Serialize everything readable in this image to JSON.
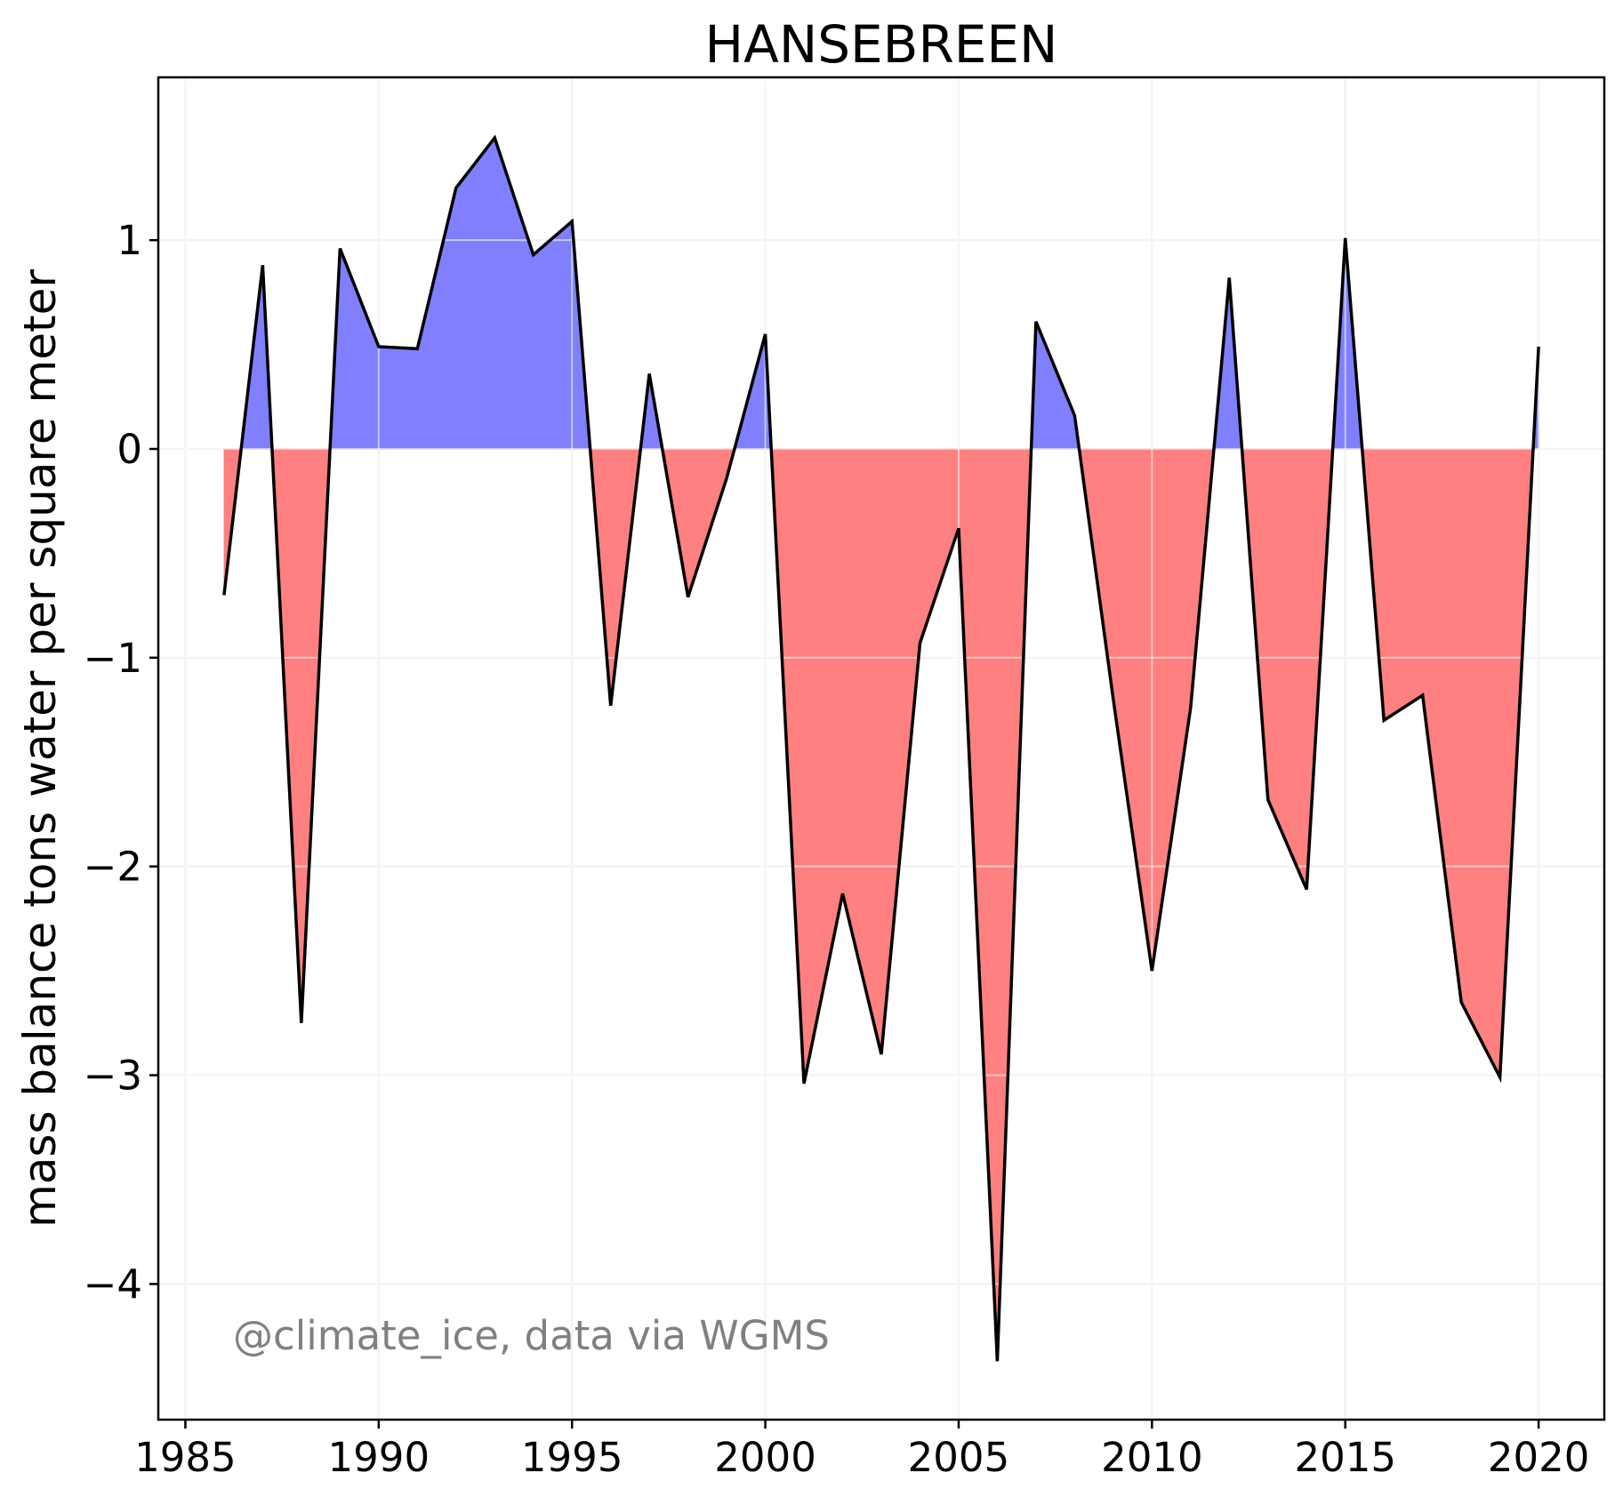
{
  "chart_data": {
    "type": "area",
    "title": "HANSEBREEN",
    "xlabel": "",
    "ylabel": "mass balance tons water per square meter",
    "annotation": "@climate_ice, data via WGMS",
    "xlim": [
      1984.3,
      2021.7
    ],
    "ylim": [
      -4.65,
      1.78
    ],
    "x_ticks": [
      1985,
      1990,
      1995,
      2000,
      2005,
      2010,
      2015,
      2020
    ],
    "x_tick_labels": [
      "1985",
      "1990",
      "1995",
      "2000",
      "2005",
      "2010",
      "2015",
      "2020"
    ],
    "y_ticks": [
      -4,
      -3,
      -2,
      -1,
      0,
      1
    ],
    "y_tick_labels": [
      "−4",
      "−3",
      "−2",
      "−1",
      "0",
      "1"
    ],
    "grid": true,
    "colors": {
      "positive_fill": "#8080ff",
      "negative_fill": "#ff8080",
      "line": "#000000",
      "grid": "#e5e5e5",
      "annotation": "#808080"
    },
    "x": [
      1986,
      1987,
      1988,
      1989,
      1990,
      1991,
      1992,
      1993,
      1994,
      1995,
      1996,
      1997,
      1998,
      1999,
      2000,
      2001,
      2002,
      2003,
      2004,
      2005,
      2006,
      2007,
      2008,
      2009,
      2010,
      2011,
      2012,
      2013,
      2014,
      2015,
      2016,
      2017,
      2018,
      2019,
      2020
    ],
    "values": [
      -0.7,
      0.88,
      -2.75,
      0.96,
      0.49,
      0.48,
      1.25,
      1.49,
      0.93,
      1.09,
      -1.23,
      0.36,
      -0.71,
      -0.14,
      0.55,
      -3.04,
      -2.13,
      -2.9,
      -0.93,
      -0.38,
      -4.37,
      0.61,
      0.16,
      -1.2,
      -2.5,
      -1.24,
      0.82,
      -1.68,
      -2.11,
      1.01,
      -1.3,
      -1.18,
      -2.65,
      -3.01,
      0.49
    ]
  }
}
